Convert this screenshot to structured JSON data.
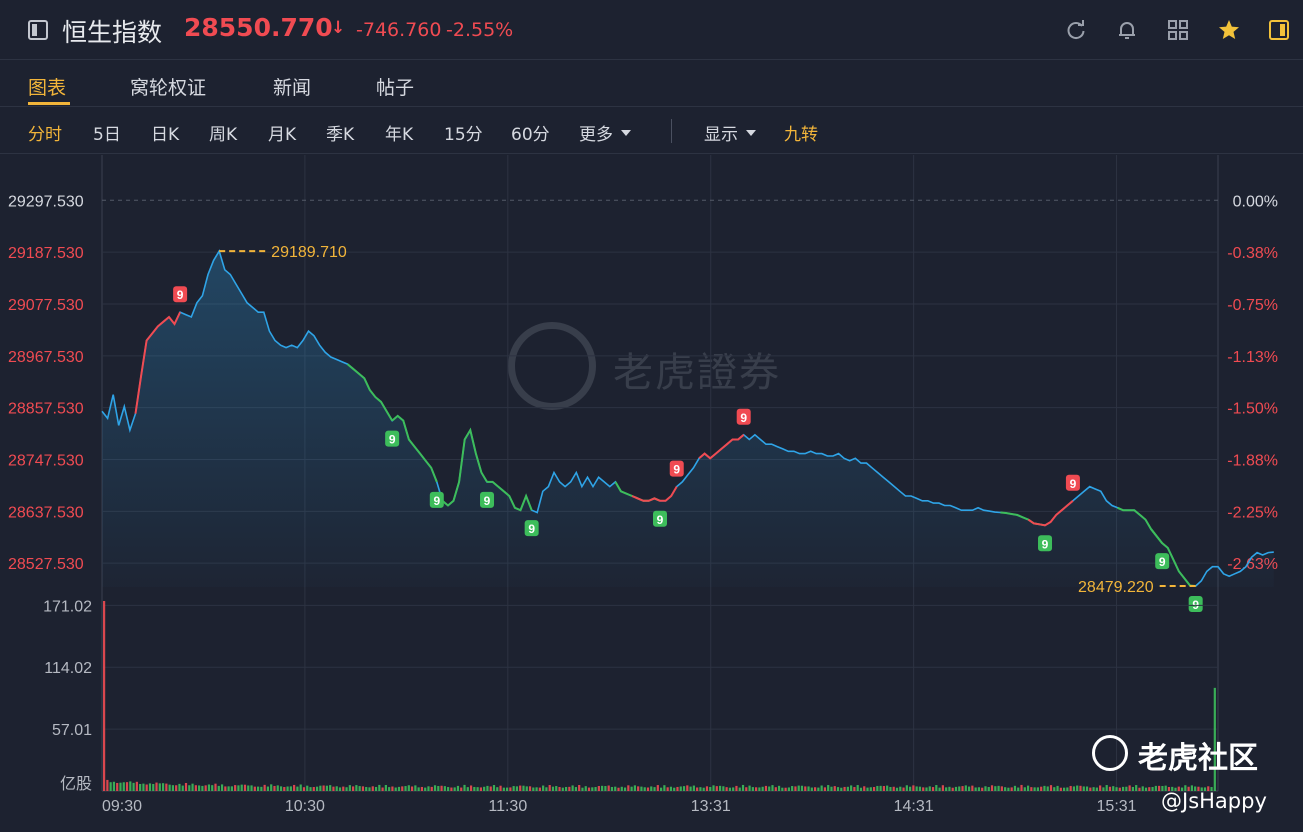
{
  "header": {
    "title": "恒生指数",
    "price": "28550.770",
    "arrow": "↓",
    "change": "-746.760",
    "change_pct": "-2.55%",
    "colors": {
      "down": "#f04b52",
      "up": "#3dbd5b",
      "accent": "#f2b53a",
      "line": "#2fa4e7"
    }
  },
  "tabs": [
    "图表",
    "窝轮权证",
    "新闻",
    "帖子"
  ],
  "periods": [
    "分时",
    "5日",
    "日K",
    "周K",
    "月K",
    "季K",
    "年K",
    "15分",
    "60分",
    "更多"
  ],
  "display_label": "显示",
  "jiuzhuan_label": "九转",
  "watermark": {
    "center": "老虎證券",
    "bottom_right": "老虎社区",
    "user": "@JsHappy"
  },
  "chart_data": {
    "type": "line",
    "title": "",
    "prev_close": 29297.53,
    "y_ticks": [
      "29297.530",
      "29187.530",
      "29077.530",
      "28967.530",
      "28857.530",
      "28747.530",
      "28637.530",
      "28527.530"
    ],
    "y_tick_values": [
      29297.53,
      29187.53,
      29077.53,
      28967.53,
      28857.53,
      28747.53,
      28637.53,
      28527.53
    ],
    "pct_ticks": [
      "0.00%",
      "-0.38%",
      "-0.75%",
      "-1.13%",
      "-1.50%",
      "-1.88%",
      "-2.25%",
      "-2.63%"
    ],
    "ylim": [
      28477,
      29330
    ],
    "x_ticks": [
      "09:30",
      "10:30",
      "11:30",
      "13:31",
      "14:31",
      "15:31"
    ],
    "x_tick_index": [
      0,
      60,
      120,
      180,
      240,
      300
    ],
    "high_label": "29189.710",
    "low_label": "28479.220",
    "prices": [
      28850,
      28835,
      28885,
      28820,
      28860,
      28810,
      28845,
      28925,
      29000,
      29015,
      29030,
      29040,
      29050,
      29035,
      29060,
      29055,
      29050,
      29080,
      29095,
      29140,
      29170,
      29189.71,
      29150,
      29140,
      29120,
      29100,
      29080,
      29070,
      29060,
      29060,
      29020,
      29000,
      28990,
      28985,
      28990,
      28985,
      29000,
      29020,
      29010,
      28990,
      28975,
      28965,
      28960,
      28955,
      28950,
      28940,
      28930,
      28920,
      28895,
      28880,
      28870,
      28850,
      28830,
      28840,
      28830,
      28790,
      28775,
      28760,
      28745,
      28730,
      28700,
      28660,
      28650,
      28660,
      28700,
      28790,
      28810,
      28760,
      28720,
      28700,
      28700,
      28690,
      28680,
      28670,
      28645,
      28640,
      28670,
      28640,
      28635,
      28680,
      28690,
      28720,
      28700,
      28690,
      28700,
      28720,
      28690,
      28710,
      28690,
      28710,
      28700,
      28690,
      28700,
      28680,
      28675,
      28670,
      28665,
      28660,
      28660,
      28665,
      28660,
      28660,
      28670,
      28690,
      28700,
      28715,
      28730,
      28750,
      28760,
      28750,
      28760,
      28770,
      28780,
      28790,
      28790,
      28800,
      28790,
      28800,
      28790,
      28780,
      28780,
      28775,
      28770,
      28765,
      28765,
      28760,
      28760,
      28765,
      28760,
      28760,
      28755,
      28755,
      28760,
      28750,
      28745,
      28750,
      28740,
      28740,
      28730,
      28720,
      28710,
      28700,
      28690,
      28680,
      28670,
      28670,
      28665,
      28660,
      28660,
      28655,
      28655,
      28650,
      28650,
      28645,
      28640,
      28640,
      28640,
      28645,
      28640,
      28638,
      28636,
      28635,
      28634,
      28632,
      28630,
      28625,
      28620,
      28612,
      28610,
      28608,
      28615,
      28630,
      28640,
      28650,
      28660,
      28670,
      28680,
      28690,
      28685,
      28680,
      28660,
      28650,
      28645,
      28640,
      28640,
      28640,
      28630,
      28620,
      28600,
      28585,
      28570,
      28560,
      28535,
      28510,
      28495,
      28480,
      28479.22,
      28490,
      28510,
      28520,
      28520,
      28505,
      28500,
      28505,
      28510,
      28520,
      28540,
      28550,
      28545,
      28550,
      28551
    ],
    "ninec_markers": [
      {
        "index": 14,
        "label": "9",
        "color": "red"
      },
      {
        "index": 52,
        "label": "9",
        "color": "green"
      },
      {
        "index": 60,
        "label": "9",
        "color": "green"
      },
      {
        "index": 69,
        "label": "9",
        "color": "green"
      },
      {
        "index": 77,
        "label": "9",
        "color": "green"
      },
      {
        "index": 100,
        "label": "9",
        "color": "green"
      },
      {
        "index": 103,
        "label": "9",
        "color": "red"
      },
      {
        "index": 115,
        "label": "9",
        "color": "red"
      },
      {
        "index": 169,
        "label": "9",
        "color": "green"
      },
      {
        "index": 174,
        "label": "9",
        "color": "red"
      },
      {
        "index": 190,
        "label": "9",
        "color": "green"
      },
      {
        "index": 196,
        "label": "9",
        "color": "green"
      }
    ],
    "volume": {
      "unit": "亿股",
      "ticks": [
        "171.02",
        "114.02",
        "57.01"
      ],
      "tick_values": [
        171.02,
        114.02,
        57.01
      ],
      "ylim": [
        0,
        175
      ],
      "first_bar": 175,
      "last_bar": 95
    }
  }
}
